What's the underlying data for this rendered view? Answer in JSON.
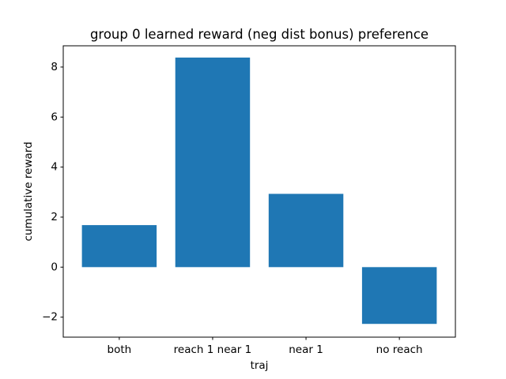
{
  "chart_data": {
    "type": "bar",
    "title": "group 0 learned reward (neg dist bonus) preference",
    "xlabel": "traj",
    "ylabel": "cumulative reward",
    "categories": [
      "both",
      "reach 1 near 1",
      "near 1",
      "no reach"
    ],
    "values": [
      1.68,
      8.38,
      2.93,
      -2.27
    ],
    "ylim": [
      -2.8,
      8.85
    ],
    "yticks": [
      -2,
      0,
      2,
      4,
      6,
      8
    ],
    "ytick_labels": [
      "−2",
      "0",
      "2",
      "4",
      "6",
      "8"
    ],
    "bar_color": "#1f77b4",
    "grid": false,
    "legend": "none"
  }
}
